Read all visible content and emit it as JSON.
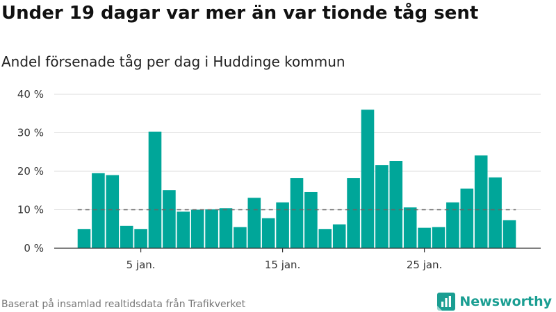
{
  "title": "Under 19 dagar var mer än var tionde tåg sent",
  "subtitle": "Andel försenade tåg per dag i Huddinge kommun",
  "source": "Baserat på insamlad realtidsdata från Trafikverket",
  "brand": {
    "name": "Newsworthy",
    "icon": "newsworthy-logo-icon",
    "color": "#1a9e92"
  },
  "chart_data": {
    "type": "bar",
    "title": "Under 19 dagar var mer än var tionde tåg sent",
    "subtitle": "Andel försenade tåg per dag i Huddinge kommun",
    "x": [
      1,
      2,
      3,
      4,
      5,
      6,
      7,
      8,
      9,
      10,
      11,
      12,
      13,
      14,
      15,
      16,
      17,
      18,
      19,
      20,
      21,
      22,
      23,
      24,
      25,
      26,
      27,
      28,
      29,
      30,
      31
    ],
    "values": [
      5.0,
      19.5,
      19.0,
      5.8,
      5.0,
      30.3,
      15.1,
      9.5,
      10.0,
      10.1,
      10.4,
      5.5,
      13.1,
      7.8,
      11.9,
      18.2,
      14.6,
      5.0,
      6.2,
      18.2,
      36.0,
      21.6,
      22.7,
      10.6,
      5.3,
      5.5,
      11.9,
      15.5,
      24.1,
      18.4,
      7.3
    ],
    "x_ticks": [
      {
        "x": 5,
        "label": "5 jan."
      },
      {
        "x": 15,
        "label": "15 jan."
      },
      {
        "x": 25,
        "label": "25 jan."
      }
    ],
    "y_ticks": [
      {
        "value": 0,
        "label": "0 %"
      },
      {
        "value": 10,
        "label": "10 %"
      },
      {
        "value": 20,
        "label": "20 %"
      },
      {
        "value": 30,
        "label": "30 %"
      },
      {
        "value": 40,
        "label": "40 %"
      }
    ],
    "ylim": [
      0,
      40
    ],
    "reference_line": 10,
    "grid": true,
    "xlabel": "",
    "ylabel": "",
    "bar_color": "#00a699",
    "reference_line_color": "#666666"
  }
}
